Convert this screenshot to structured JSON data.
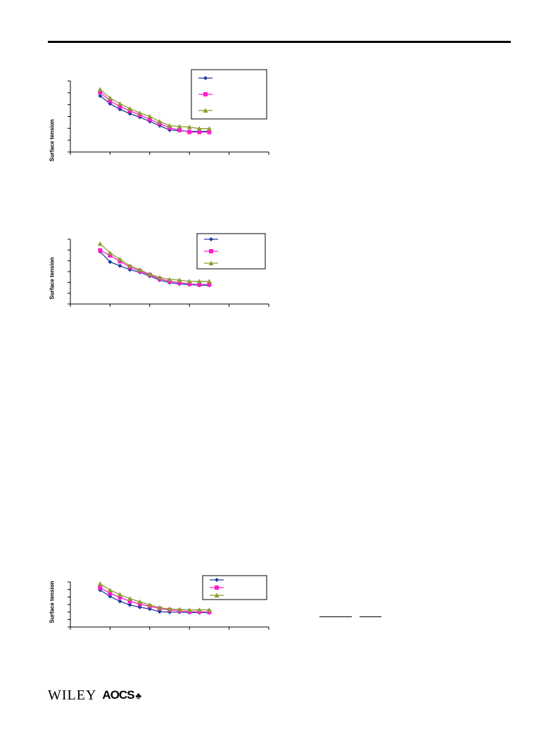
{
  "header": {},
  "charts": [
    {
      "ylabel": "Surface tension"
    },
    {
      "ylabel": "Surface tension"
    },
    {
      "ylabel": "Surface tension"
    }
  ],
  "chart_data": [
    {
      "type": "line",
      "ylabel": "Surface tension",
      "xlim": [
        0,
        10
      ],
      "ylim": [
        0,
        10
      ],
      "x": [
        1.5,
        2,
        2.5,
        3,
        3.5,
        4,
        4.5,
        5,
        5.5,
        6,
        6.5,
        7
      ],
      "legend": "top-right",
      "series": [
        {
          "values": [
            7.9,
            6.8,
            6.0,
            5.4,
            4.9,
            4.3,
            3.7,
            3.1,
            3.0,
            2.9,
            2.9,
            2.9
          ]
        },
        {
          "values": [
            8.4,
            7.2,
            6.4,
            5.8,
            5.2,
            4.6,
            4.0,
            3.4,
            3.1,
            2.8,
            2.8,
            2.8
          ]
        },
        {
          "values": [
            8.8,
            7.6,
            6.8,
            6.1,
            5.5,
            5.0,
            4.3,
            3.7,
            3.6,
            3.5,
            3.3,
            3.3
          ]
        }
      ],
      "colors": [
        "#1f3a9e",
        "#ff1dce",
        "#8f9a2e"
      ],
      "markers": [
        "diamond",
        "square",
        "triangle"
      ]
    },
    {
      "type": "line",
      "ylabel": "Surface tension",
      "xlim": [
        0,
        10
      ],
      "ylim": [
        0,
        10
      ],
      "x": [
        1.5,
        2,
        2.5,
        3,
        3.5,
        4,
        4.5,
        5,
        5.5,
        6,
        6.5,
        7
      ],
      "legend": "top-right",
      "series": [
        {
          "values": [
            8.1,
            6.5,
            5.9,
            5.3,
            4.9,
            4.3,
            3.7,
            3.3,
            3.1,
            3.0,
            2.9,
            2.9
          ]
        },
        {
          "values": [
            8.3,
            7.5,
            6.6,
            5.7,
            5.1,
            4.5,
            3.9,
            3.5,
            3.3,
            3.1,
            3.0,
            3.0
          ]
        },
        {
          "values": [
            9.3,
            7.9,
            6.9,
            5.9,
            5.3,
            4.6,
            4.1,
            3.8,
            3.7,
            3.5,
            3.5,
            3.5
          ]
        }
      ],
      "colors": [
        "#1f3a9e",
        "#ff1dce",
        "#8f9a2e"
      ],
      "markers": [
        "diamond",
        "square",
        "triangle"
      ]
    },
    {
      "type": "line",
      "ylabel": "Surface tension",
      "xlim": [
        0,
        10
      ],
      "ylim": [
        0,
        10
      ],
      "x": [
        1.5,
        2,
        2.5,
        3,
        3.5,
        4,
        4.5,
        5,
        5.5,
        6,
        6.5,
        7
      ],
      "legend": "top-right",
      "series": [
        {
          "values": [
            8.2,
            6.8,
            5.7,
            4.9,
            4.4,
            4.0,
            3.4,
            3.3,
            3.3,
            3.2,
            3.2,
            3.2
          ]
        },
        {
          "values": [
            8.7,
            7.5,
            6.6,
            5.7,
            5.1,
            4.6,
            4.1,
            3.8,
            3.6,
            3.4,
            3.4,
            3.3
          ]
        },
        {
          "values": [
            9.6,
            8.2,
            7.2,
            6.3,
            5.6,
            4.9,
            4.3,
            4.0,
            3.9,
            3.8,
            3.8,
            3.8
          ]
        }
      ],
      "colors": [
        "#1f3a9e",
        "#ff1dce",
        "#8f9a2e"
      ],
      "markers": [
        "diamond",
        "square",
        "triangle"
      ]
    }
  ],
  "footer": {
    "publisher": "WILEY",
    "society": "AOCS",
    "society_mark": "♣"
  }
}
